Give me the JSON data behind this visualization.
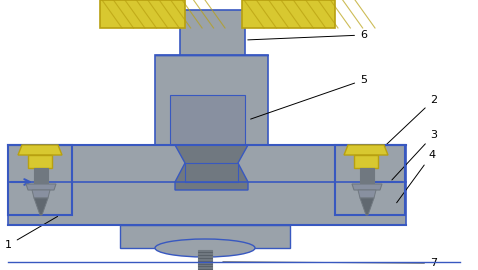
{
  "bg_color": "#ffffff",
  "gray_main": "#9aa2aa",
  "gray_dark": "#707880",
  "gray_med": "#8890a0",
  "blue_outline": "#3858c0",
  "yellow_gold": "#b8a010",
  "yellow_light": "#d8c830",
  "label_color": "#000000",
  "fig_w": 4.78,
  "fig_h": 2.7,
  "dpi": 100
}
